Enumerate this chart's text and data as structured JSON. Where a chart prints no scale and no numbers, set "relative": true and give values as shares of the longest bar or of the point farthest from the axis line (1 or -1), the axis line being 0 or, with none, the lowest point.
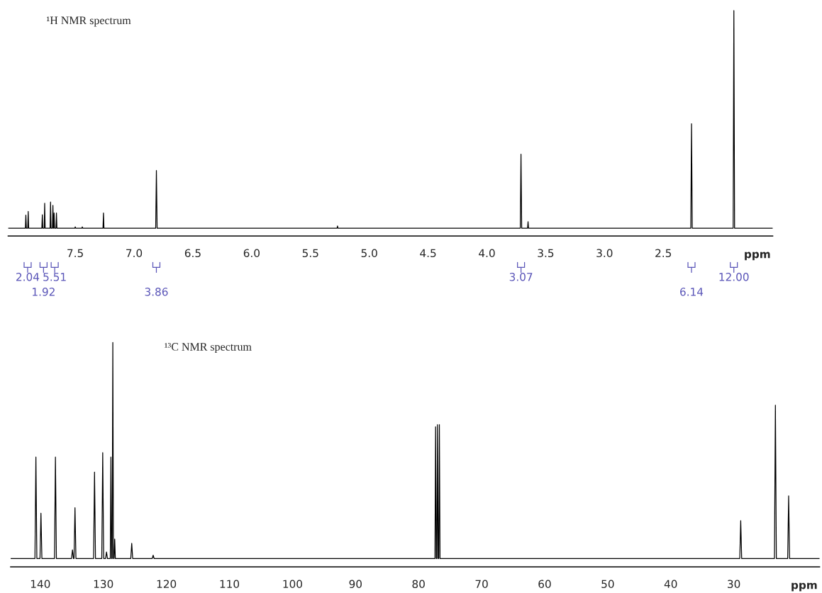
{
  "chart_data": [
    {
      "type": "line",
      "title": "¹H NMR spectrum",
      "xlabel": "ppm",
      "relative": true,
      "xlim": [
        8.07,
        1.57
      ],
      "xticks": [
        7.5,
        {
          "value": 7,
          "label": "7.0"
        },
        6.5,
        {
          "value": 6,
          "label": "6.0"
        },
        5.5,
        {
          "value": 5,
          "label": "5.0"
        },
        4.5,
        {
          "value": 4,
          "label": "4.0"
        },
        3.5,
        {
          "value": 3,
          "label": "3.0"
        },
        2.5
      ],
      "series": [
        {
          "color": "#000000",
          "x": [
            8.07,
            7.924,
            7.92,
            7.916,
            7.904,
            7.9,
            7.896,
            7.784,
            7.78,
            7.776,
            7.764,
            7.76,
            7.756,
            7.714,
            7.71,
            7.706,
            7.694,
            7.69,
            7.686,
            7.684,
            7.68,
            7.676,
            7.664,
            7.66,
            7.656,
            7.504,
            7.5,
            7.496,
            7.444,
            7.44,
            7.436,
            7.264,
            7.26,
            7.256,
            6.816,
            6.81,
            6.804,
            5.274,
            5.27,
            5.266,
            3.716,
            3.71,
            3.704,
            3.654,
            3.65,
            3.646,
            2.266,
            2.26,
            2.254,
            1.906,
            1.9,
            1.894,
            1.57
          ],
          "values": [
            0,
            0,
            0.06,
            0,
            0,
            0.077,
            0,
            0,
            0.062,
            0,
            0,
            0.115,
            0,
            0,
            0.12,
            0,
            0,
            0.105,
            0,
            0,
            0.07,
            0,
            0,
            0.07,
            0,
            0,
            0.006,
            0,
            0,
            0.006,
            0,
            0,
            0.07,
            0,
            0,
            0.265,
            0,
            0,
            0.01,
            0,
            0,
            0.34,
            0,
            0,
            0.03,
            0,
            0,
            0.48,
            0,
            0,
            1.0,
            0,
            0
          ]
        }
      ],
      "annotations": [
        "2.04",
        "1.92",
        "5.51",
        "3.86",
        "3.07",
        "6.14",
        "12.00"
      ]
    },
    {
      "type": "line",
      "title": "¹³C NMR spectrum",
      "xlabel": "ppm",
      "relative": true,
      "xlim": [
        144.7,
        16.4
      ],
      "xticks": [
        140,
        130,
        120,
        110,
        100,
        90,
        80,
        70,
        60,
        50,
        40,
        30
      ],
      "series": [
        {
          "color": "#000000",
          "x": [
            144.7,
            140.85,
            140.7,
            140.55,
            140.05,
            139.9,
            139.75,
            137.75,
            137.6,
            137.45,
            135.05,
            134.9,
            134.75,
            134.65,
            134.5,
            134.35,
            131.55,
            131.4,
            131.25,
            130.25,
            130.1,
            129.95,
            129.65,
            129.5,
            129.35,
            128.9,
            128.8,
            128.7,
            128.6,
            128.5,
            128.4,
            128.3,
            128.2,
            128.1,
            125.65,
            125.5,
            125.35,
            122.25,
            122.1,
            121.95,
            77.4,
            77.3,
            77.2,
            77.1,
            77.0,
            76.9,
            76.8,
            76.7,
            76.6,
            29.05,
            28.9,
            28.75,
            23.55,
            23.4,
            23.25,
            21.45,
            21.3,
            21.15,
            16.4
          ],
          "values": [
            0,
            0,
            0.47,
            0,
            0,
            0.21,
            0,
            0,
            0.47,
            0,
            0,
            0.04,
            0,
            0,
            0.235,
            0,
            0,
            0.4,
            0,
            0,
            0.49,
            0,
            0,
            0.03,
            0,
            0,
            0.47,
            0,
            0,
            1.0,
            0,
            0,
            0.09,
            0,
            0,
            0.07,
            0,
            0,
            0.015,
            0,
            0,
            0.61,
            0,
            0,
            0.62,
            0,
            0,
            0.62,
            0,
            0,
            0.175,
            0,
            0,
            0.71,
            0,
            0,
            0.29,
            0,
            0
          ]
        }
      ]
    }
  ]
}
